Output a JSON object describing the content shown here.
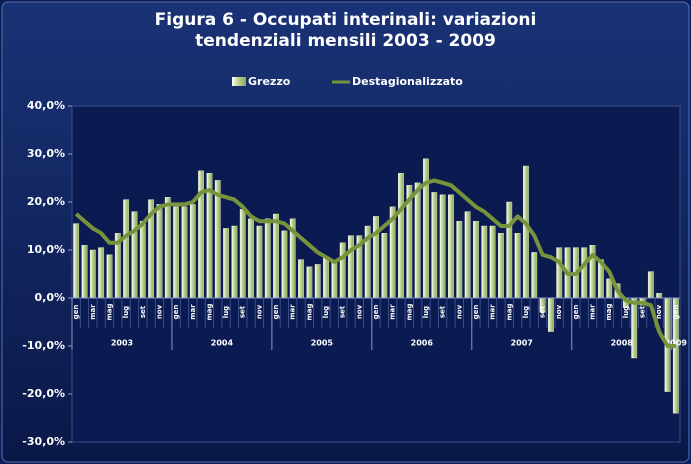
{
  "chart_data": {
    "type": "bar_line",
    "title": "Figura 6 - Occupati interinali: variazioni tendenziali mensili 2003 - 2009",
    "categories": [
      "gen",
      null,
      "mar",
      null,
      "mag",
      null,
      "lug",
      null,
      "set",
      null,
      "nov",
      null,
      "gen",
      null,
      "mar",
      null,
      "mag",
      null,
      "lug",
      null,
      "set",
      null,
      "nov",
      null,
      "gen",
      null,
      "mar",
      null,
      "mag",
      null,
      "lug",
      null,
      "set",
      null,
      "nov",
      null,
      "gen",
      null,
      "mar",
      null,
      "mag",
      null,
      "lug",
      null,
      "set",
      null,
      "nov",
      null,
      "gen",
      null,
      "mar",
      null,
      "mag",
      null,
      "lug",
      null,
      "set",
      null,
      "nov",
      null,
      "gen",
      null,
      "mar",
      null,
      "mag",
      null,
      "lug",
      null,
      "set",
      null,
      "nov",
      null,
      "gen"
    ],
    "years": [
      "2003",
      "2004",
      "2005",
      "2006",
      "2007",
      "2008",
      "2009"
    ],
    "series": [
      {
        "name": "Grezzo",
        "color": "#c4d79b",
        "kind": "bar",
        "values": [
          15.5,
          11,
          10,
          10.5,
          9,
          13.5,
          20.5,
          18,
          16,
          20.5,
          19.5,
          21,
          19,
          19,
          19.5,
          26.5,
          26,
          24.5,
          14.5,
          15,
          18.5,
          16.5,
          15,
          16.5,
          17.5,
          14,
          16.5,
          8,
          6.5,
          7,
          8.5,
          7.5,
          11.5,
          13,
          13,
          15,
          17,
          13.5,
          19,
          26,
          23.5,
          24,
          29,
          22,
          21.5,
          21.5,
          16,
          18,
          16,
          15,
          15,
          13.5,
          20,
          13.5,
          27.5,
          9.5,
          -3,
          -7,
          10.5,
          10.5,
          10.5,
          10.5,
          11,
          8,
          4,
          3,
          -2,
          -12.5,
          -1.5,
          5.5,
          1,
          -19.5,
          -24
        ]
      },
      {
        "name": "Destagionalizzato",
        "color": "#77933c",
        "kind": "line",
        "values": [
          17.5,
          16,
          14.5,
          13.5,
          11.5,
          11.5,
          13,
          14,
          15.5,
          17.5,
          19,
          19.5,
          19.5,
          19.5,
          20,
          22,
          22.5,
          21.5,
          21,
          20.5,
          19,
          17,
          16,
          16,
          16,
          15.5,
          14,
          12.5,
          11,
          9.5,
          8.5,
          7.5,
          8.5,
          10,
          11,
          12.5,
          13.5,
          15,
          16.5,
          18.5,
          20.5,
          22.5,
          24,
          24.5,
          24,
          23.5,
          22,
          20.5,
          19,
          18,
          16.5,
          15,
          15,
          17,
          15.5,
          13,
          9,
          8.5,
          7.5,
          5,
          5,
          7,
          9,
          7.5,
          5.5,
          1.5,
          -0.5,
          -1,
          -1,
          -1.5,
          -7,
          -10,
          -10
        ]
      }
    ],
    "ylim": [
      -30,
      40
    ],
    "yticks": [
      {
        "value": -30,
        "label": "-30,0%"
      },
      {
        "value": -20,
        "label": "-20,0%"
      },
      {
        "value": -10,
        "label": "-10,0%"
      },
      {
        "value": 0,
        "label": "0,0%"
      },
      {
        "value": 10,
        "label": "10,0%"
      },
      {
        "value": 20,
        "label": "20,0%"
      },
      {
        "value": 30,
        "label": "30,0%"
      },
      {
        "value": 40,
        "label": "40,0%"
      }
    ],
    "legend": "top"
  }
}
